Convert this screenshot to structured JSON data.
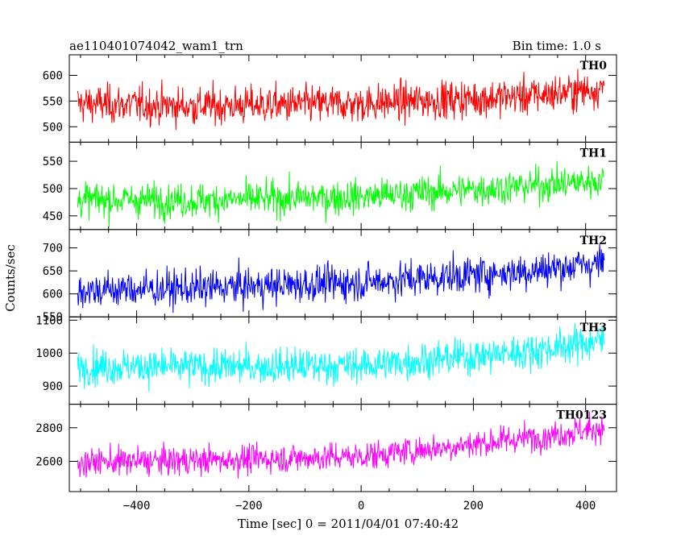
{
  "header": {
    "title": "ae110401074042_wam1_trn",
    "bin_time": "Bin time: 1.0 s"
  },
  "chart_data": {
    "type": "line",
    "title": "ae110401074042_wam1_trn",
    "xlabel": "Time [sec] 0 = 2011/04/01 07:40:42",
    "ylabel": "Counts/sec",
    "xlim": [
      -520,
      455
    ],
    "x_ticks": [
      -400,
      -200,
      0,
      200,
      400
    ],
    "x_range_data": [
      -505,
      433
    ],
    "grid": false,
    "panels": [
      {
        "name": "TH0",
        "color": "#ff0000",
        "ylim": [
          470,
          640
        ],
        "y_ticks": [
          500,
          550,
          600
        ],
        "trend": [
          [
            -505,
            545
          ],
          [
            -300,
            540
          ],
          [
            0,
            545
          ],
          [
            300,
            560
          ],
          [
            433,
            575
          ]
        ],
        "noise": 26
      },
      {
        "name": "TH1",
        "color": "#00ff00",
        "ylim": [
          425,
          585
        ],
        "y_ticks": [
          450,
          500,
          550
        ],
        "trend": [
          [
            -505,
            480
          ],
          [
            -300,
            478
          ],
          [
            0,
            485
          ],
          [
            300,
            505
          ],
          [
            433,
            515
          ]
        ],
        "noise": 22
      },
      {
        "name": "TH2",
        "color": "#0000ff",
        "ylim": [
          550,
          740
        ],
        "y_ticks": [
          550,
          600,
          650,
          700
        ],
        "trend": [
          [
            -505,
            608
          ],
          [
            -300,
            612
          ],
          [
            0,
            625
          ],
          [
            300,
            650
          ],
          [
            433,
            668
          ]
        ],
        "noise": 28
      },
      {
        "name": "TH3",
        "color": "#00ffff",
        "ylim": [
          845,
          1110
        ],
        "y_ticks": [
          900,
          1000,
          1100
        ],
        "trend": [
          [
            -505,
            960
          ],
          [
            -300,
            958
          ],
          [
            0,
            962
          ],
          [
            300,
            1005
          ],
          [
            433,
            1040
          ]
        ],
        "noise": 38
      },
      {
        "name": "TH0123",
        "color": "#ff00ff",
        "ylim": [
          2420,
          2940
        ],
        "y_ticks": [
          2600,
          2800
        ],
        "trend": [
          [
            -505,
            2595
          ],
          [
            -300,
            2605
          ],
          [
            0,
            2630
          ],
          [
            300,
            2740
          ],
          [
            433,
            2800
          ]
        ],
        "noise": 60
      }
    ]
  }
}
